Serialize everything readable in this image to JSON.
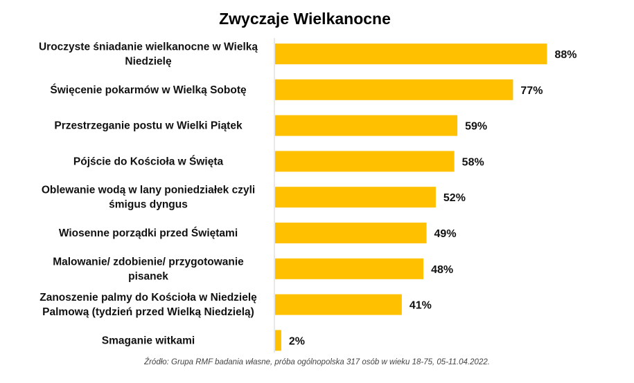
{
  "chart_data": {
    "type": "bar",
    "orientation": "horizontal",
    "title": "Zwyczaje Wielkanocne",
    "categories": [
      "Uroczyste śniadanie wielkanocne w Wielką Niedzielę",
      "Święcenie pokarmów w Wielką Sobotę",
      "Przestrzeganie postu w Wielki Piątek",
      "Pójście do Kościoła w Święta",
      "Oblewanie wodą w lany poniedziałek czyli śmigus dyngus",
      "Wiosenne porządki przed Świętami",
      "Malowanie/ zdobienie/ przygotowanie pisanek",
      "Zanoszenie palmy do Kościoła w Niedzielę Palmową (tydzień przed Wielką Niedzielą)",
      "Smaganie witkami"
    ],
    "category_lines": [
      [
        "Uroczyste śniadanie wielkanocne w Wielką",
        "Niedzielę"
      ],
      [
        "Święcenie pokarmów w Wielką Sobotę"
      ],
      [
        "Przestrzeganie postu w Wielki Piątek"
      ],
      [
        "Pójście do Kościoła w Święta"
      ],
      [
        "Oblewanie wodą w lany poniedziałek czyli",
        "śmigus dyngus"
      ],
      [
        "Wiosenne porządki przed Świętami"
      ],
      [
        "Malowanie/ zdobienie/ przygotowanie",
        "pisanek"
      ],
      [
        "Zanoszenie palmy do Kościoła w Niedzielę",
        "Palmową (tydzień przed Wielką Niedzielą)"
      ],
      [
        "Smaganie witkami"
      ]
    ],
    "values": [
      88,
      77,
      59,
      58,
      52,
      49,
      48,
      41,
      2
    ],
    "value_labels": [
      "88%",
      "77%",
      "59%",
      "58%",
      "52%",
      "49%",
      "48%",
      "41%",
      "2%"
    ],
    "xlim": [
      0,
      100
    ],
    "unit": "%",
    "bar_color": "#FFC000",
    "grid": false,
    "source": "Źródło: Grupa RMF badania własne, próba ogólnopolska 317 osób w wieku 18-75, 05-11.04.2022."
  }
}
